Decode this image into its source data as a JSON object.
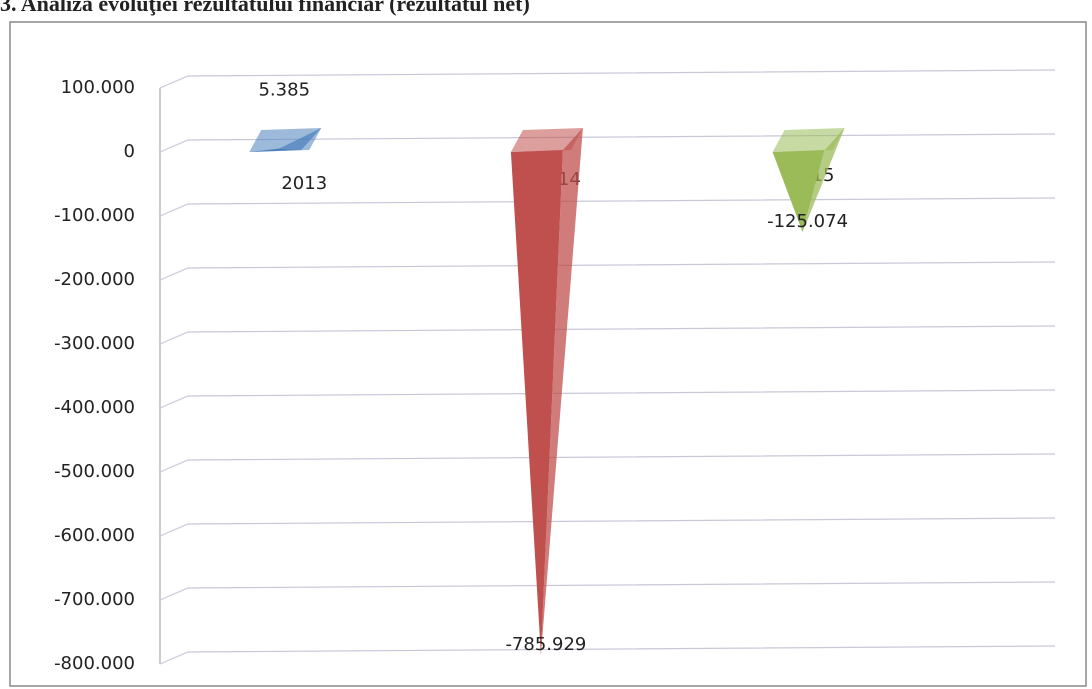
{
  "chart_data": {
    "type": "bar",
    "title": "3. Analiza evoluţiei rezultatului financiar (rezultatul net)",
    "categories": [
      "2013",
      "2014",
      "2015"
    ],
    "values": [
      5385,
      -785929,
      -125074
    ],
    "value_labels": [
      "5.385",
      "-785.929",
      "-125.074"
    ],
    "colors": [
      "#4f81bd",
      "#c0504d",
      "#9bbb59"
    ],
    "ylim": [
      -800000,
      100000
    ],
    "yticks": [
      {
        "value": 100000,
        "label": "100.000"
      },
      0,
      {
        "value": -100000,
        "label": "-100.000"
      },
      {
        "value": -200000,
        "label": "-200.000"
      },
      {
        "value": -300000,
        "label": "-300.000"
      },
      {
        "value": -400000,
        "label": "-400.000"
      },
      {
        "value": -500000,
        "label": "-500.000"
      },
      {
        "value": -600000,
        "label": "-600.000"
      },
      {
        "value": -700000,
        "label": "-700.000"
      },
      {
        "value": -800000,
        "label": "-800.000"
      }
    ],
    "grid": true
  }
}
